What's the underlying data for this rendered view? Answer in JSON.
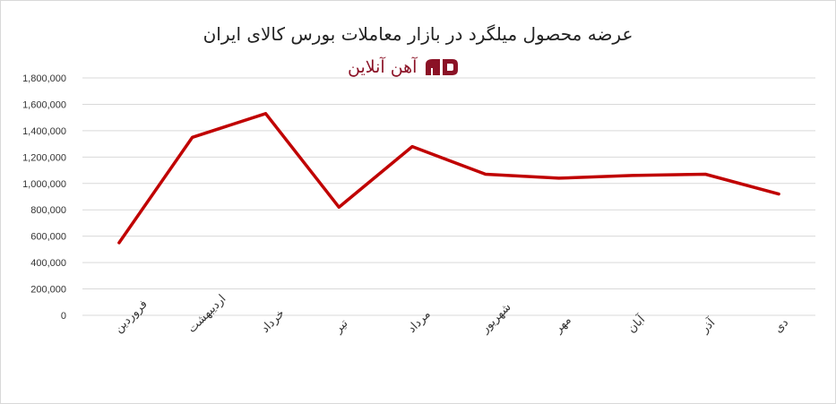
{
  "title": "عرضه محصول میلگرد در بازار معاملات بورس کالای ایران",
  "logo": {
    "text": "آهن آنلاین",
    "icon": "ao-logo-icon",
    "color": "#8b1226"
  },
  "chart_data": {
    "type": "line",
    "title": "عرضه محصول میلگرد در بازار معاملات بورس کالای ایران",
    "categories": [
      "فروردین",
      "اردیبهشت",
      "خرداد",
      "تیر",
      "مرداد",
      "شهریور",
      "مهر",
      "آبان",
      "آذر",
      "دی"
    ],
    "series": [
      {
        "values": [
          550000,
          1350000,
          1530000,
          820000,
          1280000,
          1070000,
          1040000,
          1060000,
          1070000,
          920000
        ],
        "color": "#c00000"
      }
    ],
    "ylim": [
      0,
      1800000
    ],
    "yticks": [
      0,
      200000,
      400000,
      600000,
      800000,
      1000000,
      1200000,
      1400000,
      1600000,
      1800000
    ],
    "ytick_labels": [
      "0",
      "200,000",
      "400,000",
      "600,000",
      "800,000",
      "1,000,000",
      "1,200,000",
      "1,400,000",
      "1,600,000",
      "1,800,000"
    ],
    "xlabel": "",
    "ylabel": "",
    "grid": "horizontal",
    "legend": "none"
  }
}
